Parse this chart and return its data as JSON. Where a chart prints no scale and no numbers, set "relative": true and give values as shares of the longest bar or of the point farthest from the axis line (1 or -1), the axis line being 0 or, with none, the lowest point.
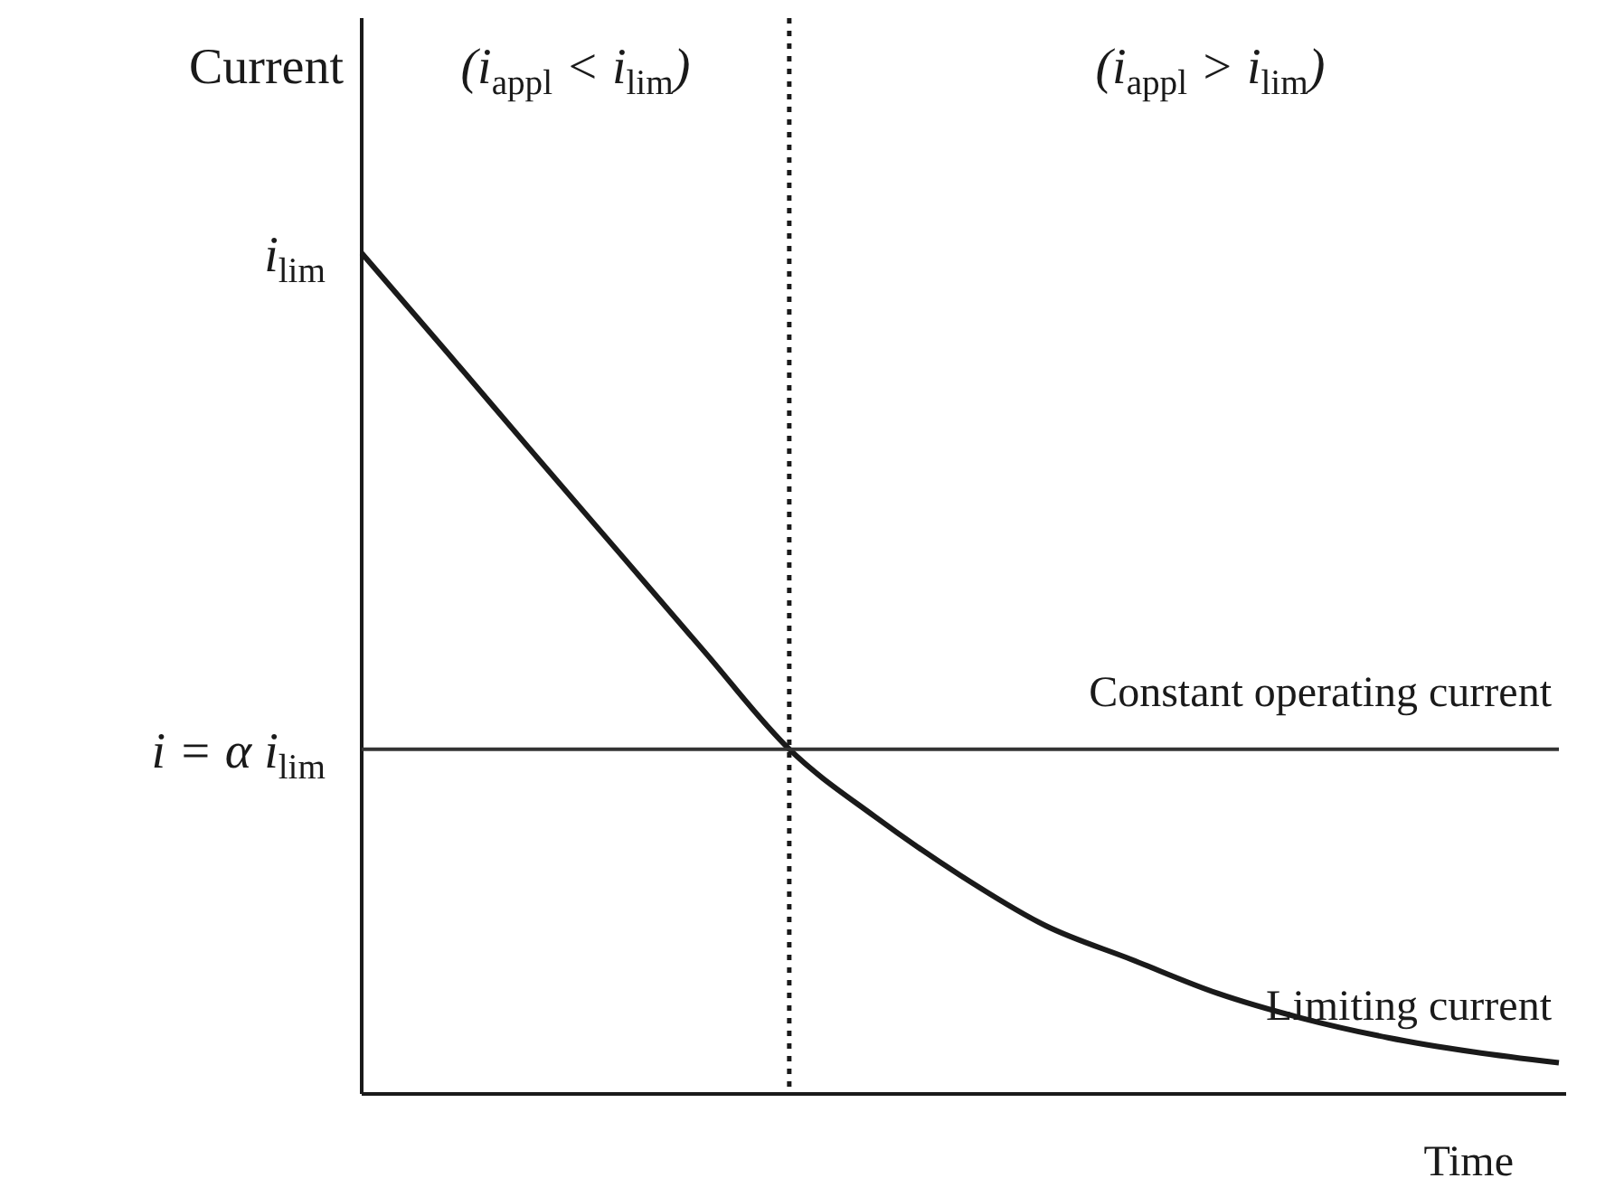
{
  "chart_data": {
    "type": "line",
    "relative": true,
    "xlabel": "Time",
    "ylabel": "Current",
    "categories": [
      null,
      null,
      null,
      null,
      null,
      null,
      null,
      null,
      null,
      null,
      null,
      null,
      null,
      null,
      null
    ],
    "series": [
      {
        "name": "Limiting current",
        "color": "#1a1a1a",
        "values": [
          1.0,
          0.882,
          0.763,
          0.645,
          0.527,
          0.41,
          0.33,
          0.26,
          0.2,
          0.16,
          0.12,
          0.09,
          0.067,
          0.05,
          0.037
        ]
      },
      {
        "name": "Constant operating current",
        "color": "#333333",
        "values": [
          0.41,
          0.41,
          0.41,
          0.41,
          0.41,
          0.41,
          0.41,
          0.41,
          0.41,
          0.41,
          0.41,
          0.41,
          0.41,
          0.41,
          0.41
        ]
      }
    ],
    "annotations": [
      "i$_{lim}$",
      "i = α i$_{lim}$",
      "(i$_{appl}$ < i$_{lim}$)",
      "(i$_{appl}$ > i$_{lim}$)"
    ],
    "grid": false,
    "legend": false,
    "marker": "none",
    "line_style": "solid"
  }
}
